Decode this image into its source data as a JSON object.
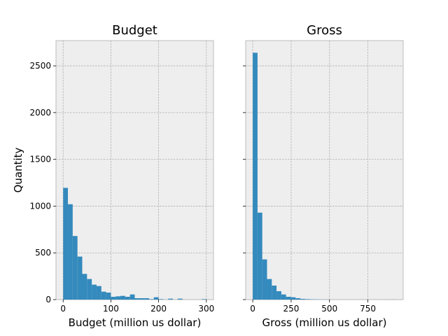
{
  "chart_data": [
    {
      "type": "bar",
      "title": "Budget",
      "xlabel": "Budget (million us dollar)",
      "ylabel": "Quantity",
      "xlim": [
        -15,
        315
      ],
      "ylim": [
        0,
        2770
      ],
      "xticks": [
        0,
        100,
        200,
        300
      ],
      "yticks": [
        0,
        500,
        1000,
        1500,
        2000,
        2500
      ],
      "bin_start": 0,
      "bin_width": 10,
      "values": [
        1195,
        1020,
        680,
        460,
        275,
        220,
        160,
        145,
        85,
        75,
        30,
        35,
        40,
        30,
        55,
        15,
        15,
        15,
        5,
        25,
        5,
        0,
        10,
        0,
        10,
        0,
        0,
        0,
        0,
        5
      ],
      "color": "#348abd"
    },
    {
      "type": "bar",
      "title": "Gross",
      "xlabel": "Gross (million us dollar)",
      "ylabel": "",
      "xlim": [
        -46,
        980
      ],
      "ylim": [
        0,
        2770
      ],
      "xticks": [
        0,
        250,
        500,
        750
      ],
      "yticks": [
        0,
        500,
        1000,
        1500,
        2000,
        2500
      ],
      "bin_start": 0,
      "bin_width": 31,
      "values": [
        2640,
        930,
        430,
        220,
        150,
        90,
        55,
        30,
        25,
        15,
        8,
        5,
        3,
        2,
        1,
        1,
        0,
        0,
        0,
        0,
        0,
        0,
        0,
        0,
        0,
        0,
        0,
        0,
        0,
        1
      ],
      "color": "#348abd"
    }
  ]
}
